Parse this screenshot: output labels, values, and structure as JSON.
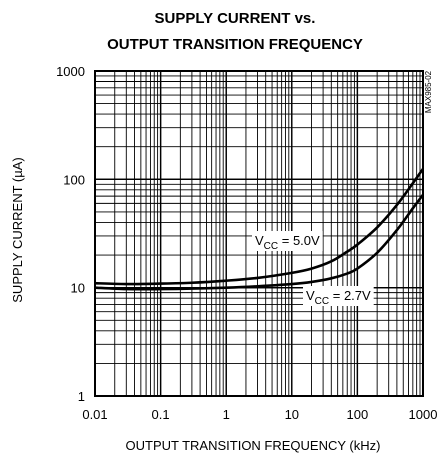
{
  "chart_data": {
    "type": "line",
    "title_line1": "SUPPLY CURRENT vs.",
    "title_line2": "OUTPUT TRANSITION FREQUENCY",
    "xlabel": "OUTPUT TRANSITION FREQUENCY (kHz)",
    "ylabel": "SUPPLY CURRENT (µA)",
    "x_scale": "log",
    "y_scale": "log",
    "xlim": [
      0.01,
      1000
    ],
    "ylim": [
      1,
      1000
    ],
    "x_ticks": [
      "0.01",
      "0.1",
      "1",
      "10",
      "100",
      "1000"
    ],
    "y_ticks": [
      "1",
      "10",
      "100",
      "1000"
    ],
    "grid": true,
    "watermark": "MAX985-02",
    "series": [
      {
        "name": "VCC = 5.0V",
        "label_main": "V",
        "label_sub": "CC",
        "label_rest": " = 5.0V",
        "x": [
          0.01,
          0.03,
          0.1,
          0.3,
          1,
          3,
          10,
          20,
          40,
          70,
          100,
          200,
          400,
          700,
          1000
        ],
        "y": [
          11.0,
          10.8,
          10.9,
          11.1,
          11.6,
          12.3,
          13.7,
          15.0,
          17.5,
          21.5,
          25.0,
          36.0,
          58.0,
          92.0,
          125.0
        ]
      },
      {
        "name": "VCC = 2.7V",
        "label_main": "V",
        "label_sub": "CC",
        "label_rest": " = 2.7V",
        "x": [
          0.01,
          0.03,
          0.1,
          0.3,
          1,
          3,
          10,
          20,
          40,
          70,
          100,
          200,
          400,
          700,
          1000
        ],
        "y": [
          10.0,
          9.7,
          9.7,
          9.8,
          10.0,
          10.3,
          10.8,
          11.3,
          12.2,
          13.5,
          15.0,
          21.0,
          34.0,
          54.0,
          72.0
        ]
      }
    ]
  }
}
